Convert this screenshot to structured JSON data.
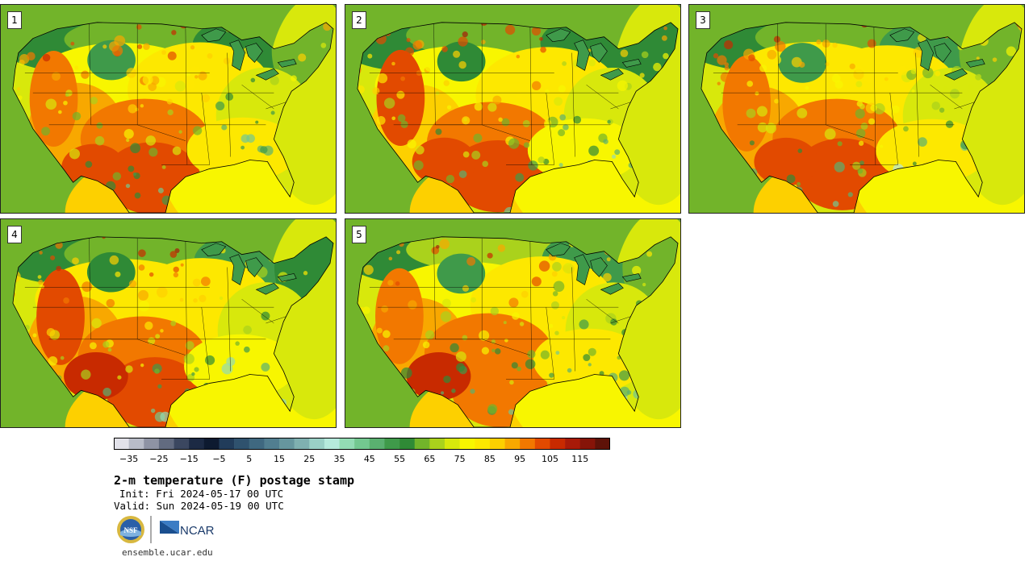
{
  "panels": [
    {
      "label": "1"
    },
    {
      "label": "2"
    },
    {
      "label": "3"
    },
    {
      "label": "4"
    },
    {
      "label": "5"
    }
  ],
  "colorbar": {
    "colors": [
      "#e2e2ea",
      "#b8bcc8",
      "#8e93a4",
      "#626b80",
      "#3b4760",
      "#1c2a44",
      "#0d1a30",
      "#213c5a",
      "#2f526e",
      "#3f6880",
      "#517e90",
      "#66969e",
      "#7fb0b0",
      "#9ad0c6",
      "#b6eadc",
      "#93dcb4",
      "#73c890",
      "#5ab070",
      "#3f9a4a",
      "#2f8a36",
      "#72b42a",
      "#aad21c",
      "#d8e80c",
      "#f8f600",
      "#fde800",
      "#fdd000",
      "#f8a800",
      "#f27800",
      "#e24a00",
      "#c82a00",
      "#a81a08",
      "#861408",
      "#5e1208"
    ],
    "tick_labels": [
      "−35",
      "−25",
      "−15",
      "−5",
      "5",
      "15",
      "25",
      "35",
      "45",
      "55",
      "65",
      "75",
      "85",
      "95",
      "105",
      "115"
    ],
    "tick_values": [
      -35,
      -25,
      -15,
      -5,
      5,
      15,
      25,
      35,
      45,
      55,
      65,
      75,
      85,
      95,
      105,
      115
    ],
    "min": -40,
    "max": 125
  },
  "title": "2-m temperature (F) postage stamp",
  "init": "Init: Fri 2024-05-17 00 UTC",
  "valid": "Valid: Sun 2024-05-19 00 UTC",
  "logos": {
    "nsf": "NSF",
    "ncar": "NCAR"
  },
  "website": "ensemble.ucar.edu"
}
